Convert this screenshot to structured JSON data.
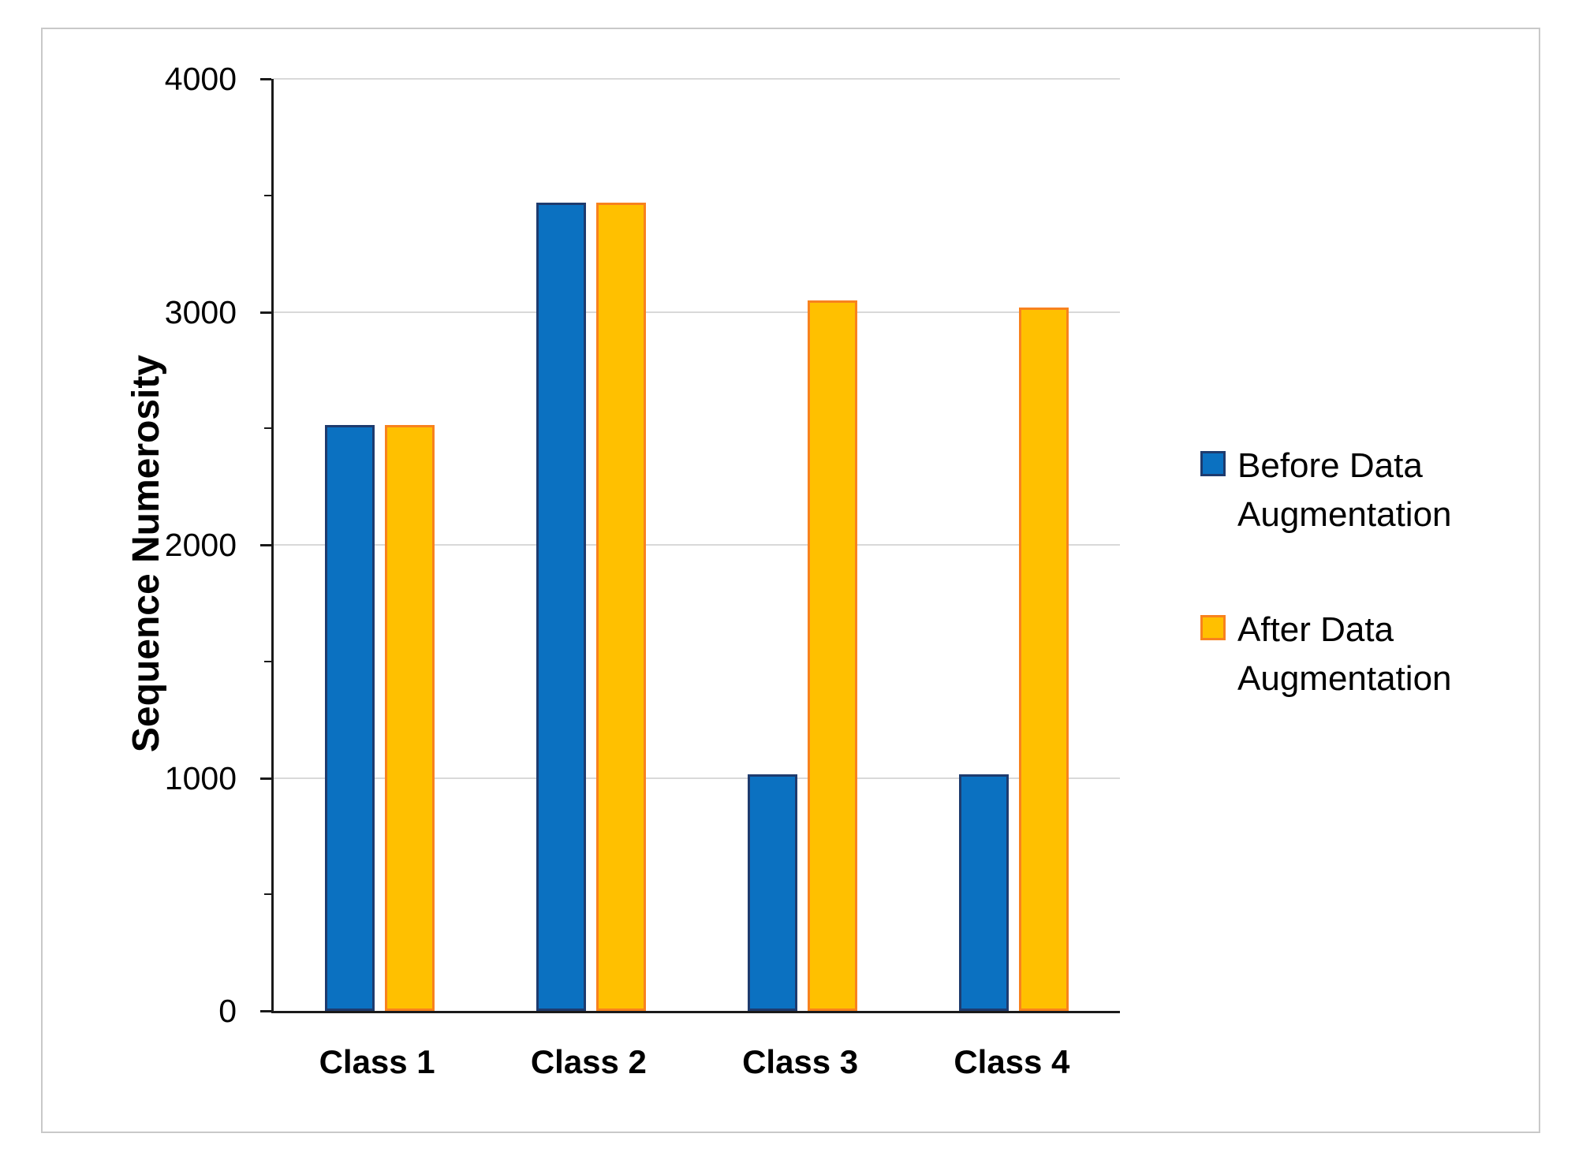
{
  "chart_data": {
    "type": "bar",
    "title": "",
    "xlabel": "",
    "ylabel": "Sequence Numerosity",
    "categories": [
      "Class 1",
      "Class 2",
      "Class 3",
      "Class 4"
    ],
    "series": [
      {
        "name": "Before Data Augmentation",
        "values": [
          2515,
          3470,
          1015,
          1015
        ],
        "fill_color": "#0B71C1",
        "border_color": "#1E3B6E"
      },
      {
        "name": "After Data Augmentation",
        "values": [
          2515,
          3470,
          3050,
          3020
        ],
        "fill_color": "#FFC000",
        "border_color": "#F8821E"
      }
    ],
    "ylim": [
      0,
      4000
    ],
    "ytick_interval": 1000,
    "yticks": [
      "0",
      "1000",
      "2000",
      "3000",
      "4000"
    ],
    "minor_tick_interval": 500,
    "grid": "major-horizontal",
    "legend_position": "right",
    "colors": {
      "gridline": "#D9D9D9",
      "axis": "#1A1A1A",
      "figure_frame": "#C9C9C9",
      "background": "#FFFFFF",
      "text": "#000000"
    }
  }
}
